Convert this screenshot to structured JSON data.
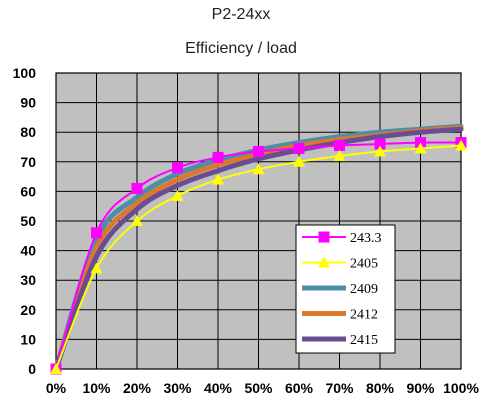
{
  "page": {
    "title_line1": "P2-24xx",
    "title_line2": "Efficiency / load"
  },
  "chart_data": {
    "type": "line",
    "title": "P2-24xx\nEfficiency / load",
    "xlabel": "",
    "ylabel": "",
    "x": [
      0,
      10,
      20,
      30,
      40,
      50,
      60,
      70,
      80,
      90,
      100
    ],
    "x_tick_labels": [
      "0%",
      "10%",
      "20%",
      "30%",
      "40%",
      "50%",
      "60%",
      "70%",
      "80%",
      "90%",
      "100%"
    ],
    "y_ticks": [
      0,
      10,
      20,
      30,
      40,
      50,
      60,
      70,
      80,
      90,
      100
    ],
    "xlim": [
      0,
      100
    ],
    "ylim": [
      0,
      100
    ],
    "grid": true,
    "legend_position": "bottom-right",
    "series": [
      {
        "name": "243.3",
        "color": "#ff00ff",
        "marker": "square",
        "values": [
          0,
          46,
          61,
          68,
          71.5,
          73.5,
          74.5,
          75.5,
          76,
          76.5,
          76.5
        ]
      },
      {
        "name": "2405",
        "color": "#ffff00",
        "marker": "triangle",
        "values": [
          0,
          34,
          50,
          58.5,
          64,
          67.5,
          70,
          72,
          73.5,
          74.5,
          75.5
        ]
      },
      {
        "name": "2409",
        "color": "#4a8fa8",
        "marker": "none",
        "values": [
          0,
          44,
          58,
          66,
          70.5,
          74,
          76.5,
          78.5,
          80,
          81,
          82
        ]
      },
      {
        "name": "2412",
        "color": "#d9782f",
        "marker": "none",
        "values": [
          0,
          41,
          56,
          64,
          69,
          72.5,
          75.5,
          77.5,
          79,
          80.5,
          81.5
        ]
      },
      {
        "name": "2415",
        "color": "#6a4c93",
        "marker": "none",
        "values": [
          0,
          38,
          54,
          62,
          67,
          71,
          74,
          76.5,
          78.5,
          80,
          81
        ]
      }
    ]
  }
}
